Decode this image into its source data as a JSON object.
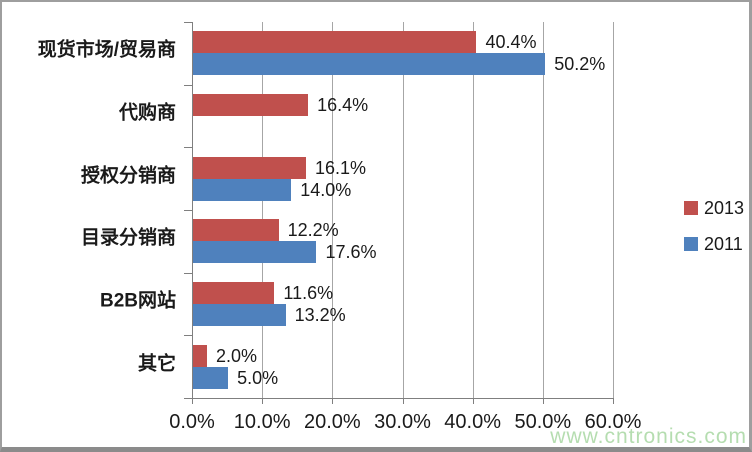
{
  "chart_data": {
    "type": "bar",
    "orientation": "horizontal",
    "title": "",
    "xlabel": "",
    "ylabel": "",
    "categories": [
      "现货市场/贸易商",
      "代购商",
      "授权分销商",
      "目录分销商",
      "B2B网站",
      "其它"
    ],
    "series": [
      {
        "name": "2013",
        "color": "#C0504D",
        "values": [
          40.4,
          16.4,
          16.1,
          12.2,
          11.6,
          2.0
        ],
        "labels": [
          "40.4%",
          "16.4%",
          "16.1%",
          "12.2%",
          "11.6%",
          "2.0%"
        ]
      },
      {
        "name": "2011",
        "color": "#4F81BD",
        "values": [
          50.2,
          null,
          14.0,
          17.6,
          13.2,
          5.0
        ],
        "labels": [
          "50.2%",
          null,
          "14.0%",
          "17.6%",
          "13.2%",
          "5.0%"
        ]
      }
    ],
    "xlim": [
      0,
      60
    ],
    "x_tick_values": [
      0,
      10,
      20,
      30,
      40,
      50,
      60
    ],
    "x_tick_labels": [
      "0.0%",
      "10.0%",
      "20.0%",
      "30.0%",
      "40.0%",
      "50.0%",
      "60.0%"
    ],
    "grid": true,
    "legend_position": "right"
  },
  "watermark": {
    "text": "www.cntronics.com",
    "color": "#b5ddb0"
  },
  "colors": {
    "gridline": "#a6a6a6",
    "axis": "#7f7f7f",
    "text": "#1a1a1a",
    "frame": "#9e9e9e"
  }
}
